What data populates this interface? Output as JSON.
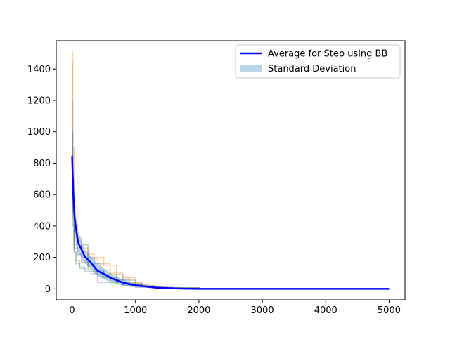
{
  "chart_data": {
    "type": "line",
    "xlim": [
      -250,
      5250
    ],
    "ylim": [
      -70,
      1580
    ],
    "x_ticks": [
      0,
      1000,
      2000,
      3000,
      4000,
      5000
    ],
    "y_ticks": [
      0,
      200,
      400,
      600,
      800,
      1000,
      1200,
      1400
    ],
    "grid": false,
    "legend_position": "top-right",
    "legend": [
      {
        "label": "Average for Step using BB",
        "kind": "line",
        "color": "#0000ff"
      },
      {
        "label": "Standard Deviation",
        "kind": "band",
        "color": "#1f77b4"
      }
    ],
    "average": {
      "color": "#0000ff",
      "points": [
        [
          0,
          845
        ],
        [
          20,
          600
        ],
        [
          40,
          450
        ],
        [
          60,
          390
        ],
        [
          80,
          330
        ],
        [
          100,
          290
        ],
        [
          150,
          250
        ],
        [
          200,
          205
        ],
        [
          250,
          185
        ],
        [
          300,
          165
        ],
        [
          350,
          140
        ],
        [
          400,
          115
        ],
        [
          500,
          95
        ],
        [
          600,
          72
        ],
        [
          700,
          55
        ],
        [
          800,
          40
        ],
        [
          900,
          30
        ],
        [
          1000,
          22
        ],
        [
          1100,
          18
        ],
        [
          1200,
          13
        ],
        [
          1300,
          8
        ],
        [
          1400,
          6
        ],
        [
          1600,
          3
        ],
        [
          1800,
          1
        ],
        [
          2000,
          0
        ],
        [
          3000,
          0
        ],
        [
          4000,
          0
        ],
        [
          5000,
          0
        ]
      ]
    },
    "std_band": {
      "color": "#1f77b4",
      "x": [
        0,
        20,
        40,
        60,
        80,
        100,
        150,
        200,
        300,
        400,
        500,
        600,
        700,
        800,
        1000,
        1200,
        1400,
        1600,
        2000,
        5000
      ],
      "upper": [
        1000,
        720,
        560,
        480,
        410,
        360,
        300,
        250,
        205,
        160,
        130,
        100,
        78,
        60,
        35,
        20,
        10,
        6,
        1,
        0
      ],
      "lower": [
        690,
        480,
        350,
        300,
        250,
        220,
        200,
        160,
        125,
        80,
        60,
        44,
        32,
        20,
        9,
        6,
        2,
        0,
        0,
        0
      ]
    },
    "runs": [
      {
        "color": "#2ca02c",
        "points": [
          [
            0,
            980
          ],
          [
            10,
            600
          ],
          [
            30,
            280
          ],
          [
            80,
            210
          ],
          [
            150,
            180
          ],
          [
            250,
            120
          ],
          [
            400,
            90
          ],
          [
            600,
            40
          ],
          [
            800,
            25
          ],
          [
            1000,
            15
          ],
          [
            1200,
            8
          ],
          [
            1400,
            3
          ],
          [
            2000,
            0
          ],
          [
            5000,
            0
          ]
        ]
      },
      {
        "color": "#ff7f0e",
        "points": [
          [
            0,
            1510
          ],
          [
            10,
            900
          ],
          [
            30,
            520
          ],
          [
            80,
            330
          ],
          [
            150,
            240
          ],
          [
            250,
            220
          ],
          [
            350,
            200
          ],
          [
            500,
            150
          ],
          [
            700,
            75
          ],
          [
            900,
            40
          ],
          [
            1100,
            20
          ],
          [
            1300,
            10
          ],
          [
            1500,
            4
          ],
          [
            2000,
            0
          ],
          [
            5000,
            0
          ]
        ]
      },
      {
        "color": "#ff7f0e",
        "points": [
          [
            0,
            1440
          ],
          [
            10,
            700
          ],
          [
            30,
            420
          ],
          [
            80,
            300
          ],
          [
            150,
            260
          ],
          [
            250,
            190
          ],
          [
            400,
            160
          ],
          [
            600,
            100
          ],
          [
            800,
            70
          ],
          [
            1000,
            30
          ],
          [
            1200,
            12
          ],
          [
            1400,
            5
          ],
          [
            2000,
            0
          ],
          [
            5000,
            0
          ]
        ]
      },
      {
        "color": "#9467bd",
        "points": [
          [
            0,
            1200
          ],
          [
            10,
            500
          ],
          [
            30,
            300
          ],
          [
            80,
            240
          ],
          [
            150,
            200
          ],
          [
            250,
            150
          ],
          [
            350,
            100
          ],
          [
            450,
            80
          ],
          [
            600,
            55
          ],
          [
            800,
            30
          ],
          [
            1000,
            18
          ],
          [
            1200,
            10
          ],
          [
            1500,
            3
          ],
          [
            2000,
            0
          ],
          [
            5000,
            0
          ]
        ]
      },
      {
        "color": "#9467bd",
        "points": [
          [
            0,
            900
          ],
          [
            10,
            450
          ],
          [
            30,
            230
          ],
          [
            60,
            180
          ],
          [
            120,
            140
          ],
          [
            200,
            110
          ],
          [
            300,
            95
          ],
          [
            400,
            40
          ],
          [
            600,
            30
          ],
          [
            800,
            20
          ],
          [
            1000,
            10
          ],
          [
            1300,
            5
          ],
          [
            2000,
            0
          ],
          [
            5000,
            0
          ]
        ]
      },
      {
        "color": "#1f77b4",
        "points": [
          [
            0,
            1000
          ],
          [
            10,
            550
          ],
          [
            30,
            360
          ],
          [
            80,
            330
          ],
          [
            150,
            280
          ],
          [
            250,
            200
          ],
          [
            350,
            160
          ],
          [
            450,
            120
          ],
          [
            600,
            90
          ],
          [
            800,
            55
          ],
          [
            1000,
            28
          ],
          [
            1200,
            14
          ],
          [
            1400,
            6
          ],
          [
            2000,
            0
          ],
          [
            5000,
            0
          ]
        ]
      },
      {
        "color": "#8c564b",
        "points": [
          [
            0,
            850
          ],
          [
            10,
            480
          ],
          [
            30,
            260
          ],
          [
            80,
            220
          ],
          [
            150,
            170
          ],
          [
            250,
            140
          ],
          [
            350,
            120
          ],
          [
            500,
            90
          ],
          [
            700,
            60
          ],
          [
            900,
            35
          ],
          [
            1100,
            20
          ],
          [
            1300,
            10
          ],
          [
            1600,
            3
          ],
          [
            2000,
            0
          ],
          [
            5000,
            0
          ]
        ]
      },
      {
        "color": "#2ca02c",
        "points": [
          [
            0,
            780
          ],
          [
            10,
            400
          ],
          [
            30,
            240
          ],
          [
            60,
            160
          ],
          [
            120,
            130
          ],
          [
            200,
            120
          ],
          [
            300,
            110
          ],
          [
            500,
            70
          ],
          [
            700,
            40
          ],
          [
            900,
            28
          ],
          [
            1100,
            15
          ],
          [
            1300,
            7
          ],
          [
            2000,
            0
          ],
          [
            5000,
            0
          ]
        ]
      }
    ]
  }
}
